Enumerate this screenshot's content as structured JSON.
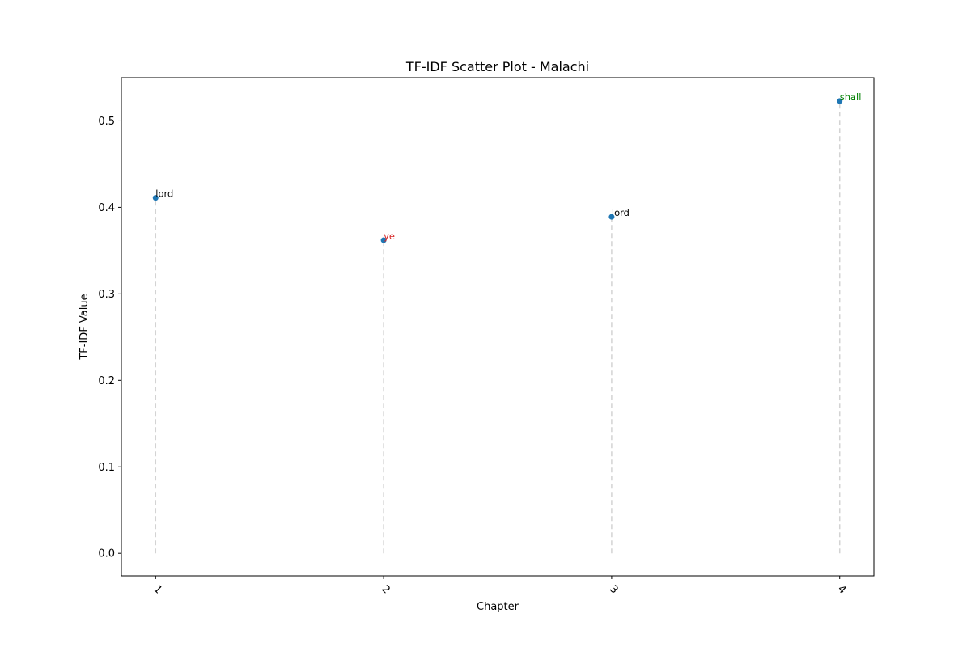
{
  "chart_data": {
    "type": "scatter",
    "title": "TF-IDF Scatter Plot - Malachi",
    "xlabel": "Chapter",
    "ylabel": "TF-IDF Value",
    "x": [
      1,
      2,
      3,
      4
    ],
    "x_tick_labels": [
      "1",
      "2",
      "3",
      "4"
    ],
    "x_tick_rotation_deg": 45,
    "y_ticks": [
      0.0,
      0.1,
      0.2,
      0.3,
      0.4,
      0.5
    ],
    "y_tick_labels": [
      "0.0",
      "0.1",
      "0.2",
      "0.3",
      "0.4",
      "0.5"
    ],
    "xlim": [
      0.85,
      4.15
    ],
    "ylim": [
      -0.026,
      0.55
    ],
    "grid": false,
    "marker_color": "#1f77b4",
    "stem_color": "#d3d3d3",
    "stem_style": "dashed",
    "points": [
      {
        "x": 1,
        "y": 0.411,
        "label": "lord",
        "label_color": "#000000"
      },
      {
        "x": 2,
        "y": 0.362,
        "label": "ye",
        "label_color": "#d62728"
      },
      {
        "x": 3,
        "y": 0.389,
        "label": "lord",
        "label_color": "#000000"
      },
      {
        "x": 4,
        "y": 0.523,
        "label": "shall",
        "label_color": "#008000"
      }
    ]
  }
}
